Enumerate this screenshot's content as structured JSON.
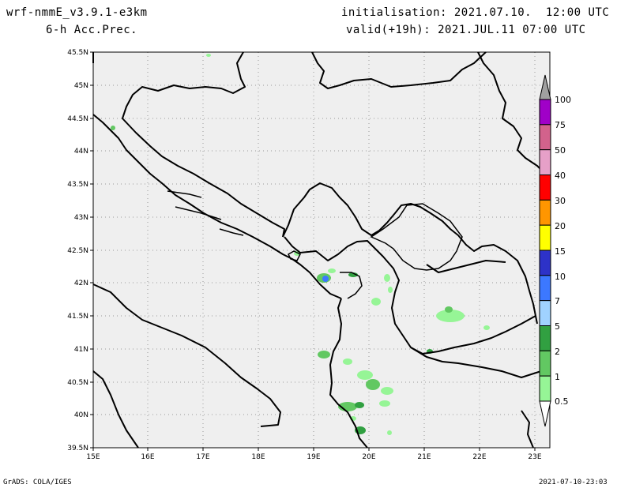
{
  "header": {
    "model": "wrf-nmmE_v3.9.1-e3km",
    "field": "6-h Acc.Prec.",
    "init": "initialisation: 2021.07.10.  12:00 UTC",
    "valid": "valid(+19h): 2021.JUL.11 07:00 UTC"
  },
  "footer": {
    "left": "GrADS: COLA/IGES",
    "right": "2021-07-10-23:03"
  },
  "map": {
    "lat_labels": [
      "45.5N",
      "45N",
      "44.5N",
      "44N",
      "43.5N",
      "43N",
      "42.5N",
      "42N",
      "41.5N",
      "41N",
      "40.5N",
      "40N",
      "39.5N"
    ],
    "lon_labels": [
      "15E",
      "16E",
      "17E",
      "18E",
      "19E",
      "20E",
      "21E",
      "22E",
      "23E"
    ]
  },
  "colorbar": {
    "labels": [
      "100",
      "75",
      "50",
      "40",
      "30",
      "20",
      "15",
      "10",
      "7",
      "5",
      "2",
      "1",
      "0.5"
    ],
    "colors": [
      "#a000c8",
      "#d2628c",
      "#e6a0c8",
      "#ff0000",
      "#ff9600",
      "#ffff00",
      "#2d32c8",
      "#3c78ff",
      "#a0d2ff",
      "#31a041",
      "#62c862",
      "#96f596"
    ]
  }
}
